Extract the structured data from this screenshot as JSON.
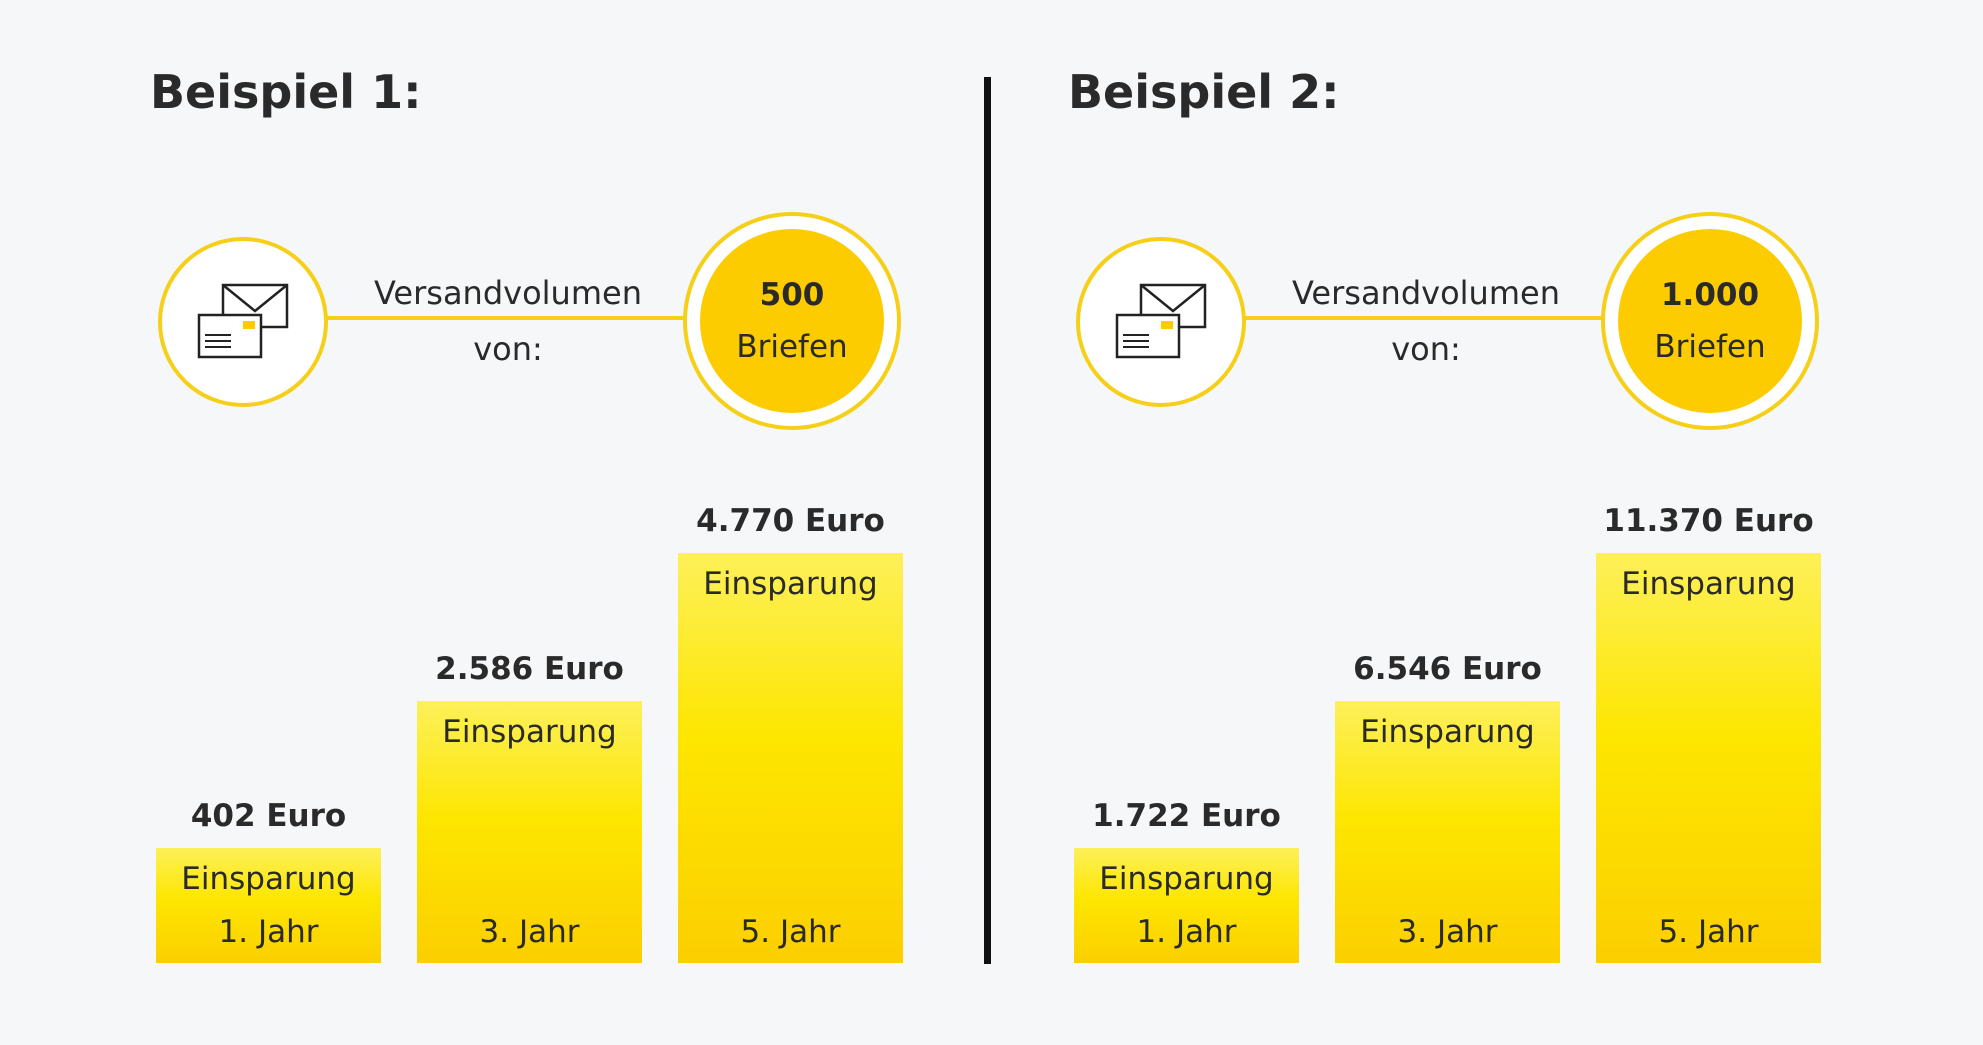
{
  "colors": {
    "accent": "#fccc00",
    "accent_ring": "#f6cf19",
    "bar_top": "#fdf05a",
    "bar_bottom": "#fccf00",
    "text": "#2a2a2a",
    "divider": "#111111",
    "background": "#f6f7f8"
  },
  "icons": {
    "envelope": "envelope-icon"
  },
  "panels": [
    {
      "title": "Beispiel 1:",
      "volume_label_line1": "Versandvolumen",
      "volume_label_line2": "von:",
      "volume_value": "500",
      "volume_unit": "Briefen"
    },
    {
      "title": "Beispiel 2:",
      "volume_label_line1": "Versandvolumen",
      "volume_label_line2": "von:",
      "volume_value": "1.000",
      "volume_unit": "Briefen"
    }
  ],
  "chart_data": [
    {
      "type": "bar",
      "title": "Beispiel 1:",
      "categories": [
        "1. Jahr",
        "3. Jahr",
        "5. Jahr"
      ],
      "values": [
        402,
        2586,
        4770
      ],
      "value_labels": [
        "402 Euro",
        "2.586 Euro",
        "4.770 Euro"
      ],
      "bar_label": "Einsparung",
      "ylim": [
        0,
        4770
      ]
    },
    {
      "type": "bar",
      "title": "Beispiel 2:",
      "categories": [
        "1. Jahr",
        "3. Jahr",
        "5. Jahr"
      ],
      "values": [
        1722,
        6546,
        11370
      ],
      "value_labels": [
        "1.722 Euro",
        "6.546 Euro",
        "11.370 Euro"
      ],
      "bar_label": "Einsparung",
      "ylim": [
        0,
        11370
      ]
    }
  ]
}
